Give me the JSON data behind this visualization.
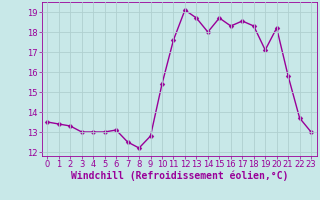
{
  "x": [
    0,
    1,
    2,
    3,
    4,
    5,
    6,
    7,
    8,
    9,
    10,
    11,
    12,
    13,
    14,
    15,
    16,
    17,
    18,
    19,
    20,
    21,
    22,
    23
  ],
  "y": [
    13.5,
    13.4,
    13.3,
    13.0,
    13.0,
    13.0,
    13.1,
    12.5,
    12.2,
    12.8,
    15.4,
    17.6,
    19.1,
    18.7,
    18.0,
    18.7,
    18.3,
    18.55,
    18.3,
    17.1,
    18.2,
    15.8,
    13.7,
    13.0
  ],
  "line_color": "#990099",
  "marker_color": "#990099",
  "bg_color": "#c8e8e8",
  "grid_color": "#b0d0d0",
  "xlabel": "Windchill (Refroidissement éolien,°C)",
  "xlabel_color": "#990099",
  "ylim": [
    11.8,
    19.5
  ],
  "xlim": [
    -0.5,
    23.5
  ],
  "yticks": [
    12,
    13,
    14,
    15,
    16,
    17,
    18,
    19
  ],
  "xticks": [
    0,
    1,
    2,
    3,
    4,
    5,
    6,
    7,
    8,
    9,
    10,
    11,
    12,
    13,
    14,
    15,
    16,
    17,
    18,
    19,
    20,
    21,
    22,
    23
  ],
  "tick_color": "#990099",
  "tick_fontsize": 6.0,
  "xlabel_fontsize": 7.0,
  "line_width": 1.0,
  "marker_size": 2.5
}
